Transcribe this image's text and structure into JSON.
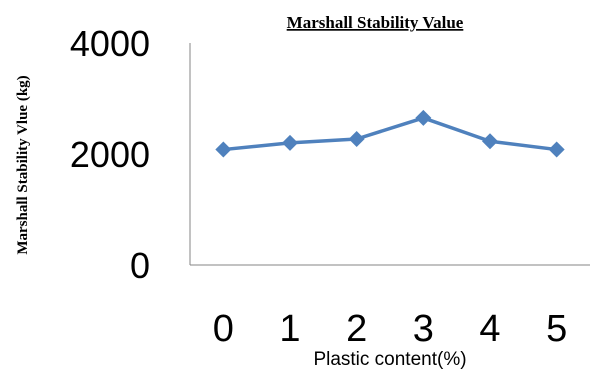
{
  "chart_data": {
    "type": "line",
    "title": "Marshall Stability Value",
    "xlabel": "Plastic content(%)",
    "ylabel": "Marshall Stability Vlue  (kg)",
    "categories": [
      "0",
      "1",
      "2",
      "3",
      "4",
      "5"
    ],
    "series": [
      {
        "values": [
          2080,
          2200,
          2270,
          2650,
          2230,
          2080
        ]
      }
    ],
    "yticks": [
      "0",
      "2000",
      "4000"
    ],
    "ylim": [
      0,
      4000
    ],
    "grid": false,
    "legend": "none",
    "colors": {
      "series": "#4f81bd",
      "axis": "#858585",
      "text": "#000000"
    }
  }
}
